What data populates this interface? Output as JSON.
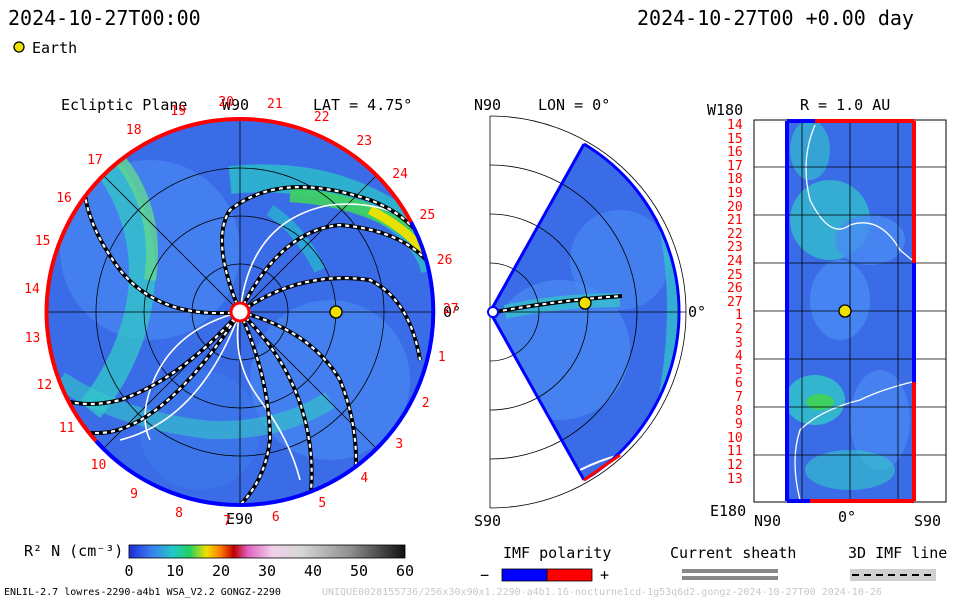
{
  "header": {
    "left_time": "2024-10-27T00:00",
    "right_time": "2024-10-27T00 +0.00 day",
    "legend_earth": "Earth"
  },
  "panels": {
    "ecliptic": {
      "title": "Ecliptic Plane",
      "top": "W90",
      "bottom": "E90",
      "right": "0°",
      "lat": "LAT = 4.75°",
      "rim_numbers": [
        "20",
        "21",
        "22",
        "23",
        "24",
        "25",
        "26",
        "27",
        "1",
        "2",
        "3",
        "4",
        "5",
        "6",
        "7",
        "8",
        "9",
        "10",
        "11",
        "12",
        "13",
        "14",
        "15",
        "16",
        "17",
        "18",
        "19"
      ]
    },
    "meridional": {
      "top": "N90",
      "bottom": "S90",
      "right": "0°",
      "lon": "LON = 0°"
    },
    "map": {
      "top_left": "W180",
      "bottom_left": "E180",
      "radius": "R = 1.0 AU",
      "x_left": "N90",
      "x_mid": "0°",
      "x_right": "S90",
      "rows": [
        "14",
        "15",
        "16",
        "17",
        "18",
        "19",
        "20",
        "21",
        "22",
        "23",
        "24",
        "25",
        "26",
        "27",
        "1",
        "2",
        "3",
        "4",
        "5",
        "6",
        "7",
        "8",
        "9",
        "10",
        "11",
        "12",
        "13"
      ]
    }
  },
  "colorbar": {
    "label": "R² N (cm⁻³)",
    "ticks": [
      "0",
      "10",
      "20",
      "30",
      "40",
      "50",
      "60"
    ]
  },
  "legends": {
    "imf_polarity": "IMF polarity",
    "minus": "−",
    "plus": "+",
    "current_sheath": "Current sheath",
    "imf_line": "3D IMF line",
    "neg_color": "#0000ff",
    "pos_color": "#ff0000"
  },
  "footer": {
    "left": "ENLIL-2.7 lowres-2290-a4b1 WSA_V2.2 GONGZ-2290",
    "right": "UNIQUE0028155736/256x30x90x1.2290-a4b1.16-nocturne1cd-1g53q6d2.gongz-2024-10-27T00   2024-10-26"
  }
}
